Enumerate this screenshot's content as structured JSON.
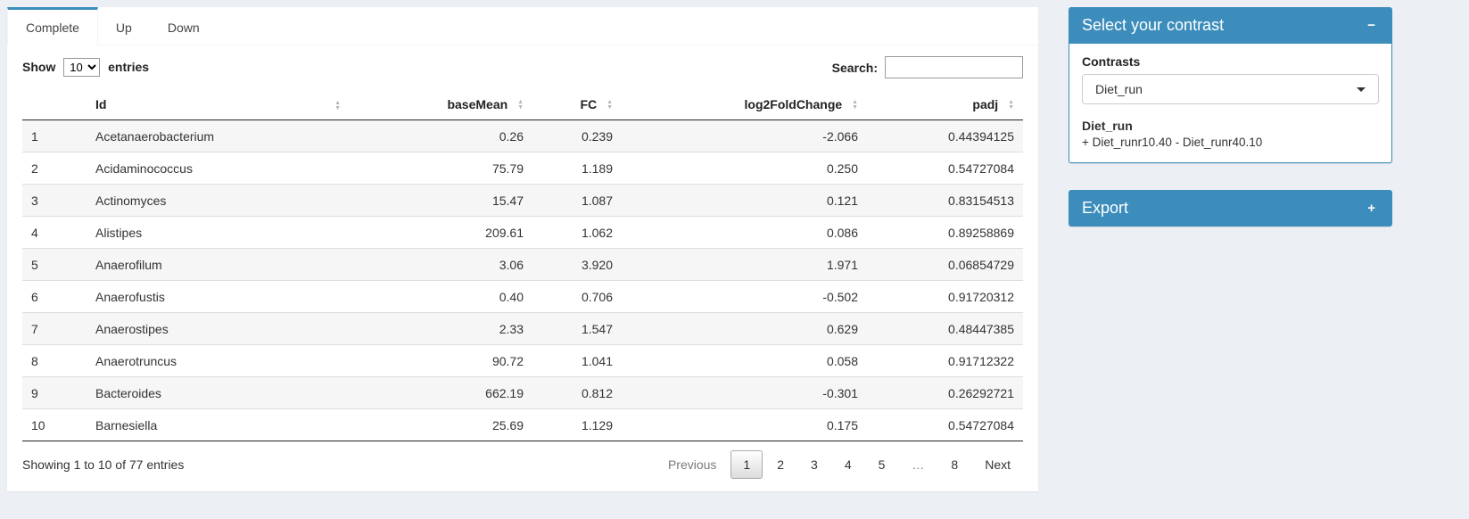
{
  "tabs": {
    "items": [
      {
        "label": "Complete",
        "active": true
      },
      {
        "label": "Up",
        "active": false
      },
      {
        "label": "Down",
        "active": false
      }
    ]
  },
  "controls": {
    "show_label": "Show",
    "entries_label": "entries",
    "length_value": "10",
    "search_label": "Search:",
    "search_value": ""
  },
  "table": {
    "headers": {
      "id": "Id",
      "baseMean": "baseMean",
      "fc": "FC",
      "lfc": "log2FoldChange",
      "padj": "padj"
    },
    "rows": [
      {
        "n": "1",
        "id": "Acetanaerobacterium",
        "baseMean": "0.26",
        "fc": "0.239",
        "lfc": "-2.066",
        "padj": "0.44394125"
      },
      {
        "n": "2",
        "id": "Acidaminococcus",
        "baseMean": "75.79",
        "fc": "1.189",
        "lfc": "0.250",
        "padj": "0.54727084"
      },
      {
        "n": "3",
        "id": "Actinomyces",
        "baseMean": "15.47",
        "fc": "1.087",
        "lfc": "0.121",
        "padj": "0.83154513"
      },
      {
        "n": "4",
        "id": "Alistipes",
        "baseMean": "209.61",
        "fc": "1.062",
        "lfc": "0.086",
        "padj": "0.89258869"
      },
      {
        "n": "5",
        "id": "Anaerofilum",
        "baseMean": "3.06",
        "fc": "3.920",
        "lfc": "1.971",
        "padj": "0.06854729"
      },
      {
        "n": "6",
        "id": "Anaerofustis",
        "baseMean": "0.40",
        "fc": "0.706",
        "lfc": "-0.502",
        "padj": "0.91720312"
      },
      {
        "n": "7",
        "id": "Anaerostipes",
        "baseMean": "2.33",
        "fc": "1.547",
        "lfc": "0.629",
        "padj": "0.48447385"
      },
      {
        "n": "8",
        "id": "Anaerotruncus",
        "baseMean": "90.72",
        "fc": "1.041",
        "lfc": "0.058",
        "padj": "0.91712322"
      },
      {
        "n": "9",
        "id": "Bacteroides",
        "baseMean": "662.19",
        "fc": "0.812",
        "lfc": "-0.301",
        "padj": "0.26292721"
      },
      {
        "n": "10",
        "id": "Barnesiella",
        "baseMean": "25.69",
        "fc": "1.129",
        "lfc": "0.175",
        "padj": "0.54727084"
      }
    ]
  },
  "footer": {
    "info": "Showing 1 to 10 of 77 entries",
    "previous_label": "Previous",
    "pages": [
      "1",
      "2",
      "3",
      "4",
      "5",
      "…",
      "8"
    ],
    "current_page": "1",
    "next_label": "Next"
  },
  "contrast_box": {
    "title": "Select your contrast",
    "collapse_icon": "−",
    "contrasts_label": "Contrasts",
    "selected_contrast": "Diet_run",
    "contrast_name": "Diet_run",
    "contrast_formula": "+ Diet_runr10.40 - Diet_runr40.10"
  },
  "export_box": {
    "title": "Export",
    "expand_icon": "+"
  },
  "colors": {
    "accent": "#3c8dbc",
    "page_background": "#ecf0f5"
  }
}
